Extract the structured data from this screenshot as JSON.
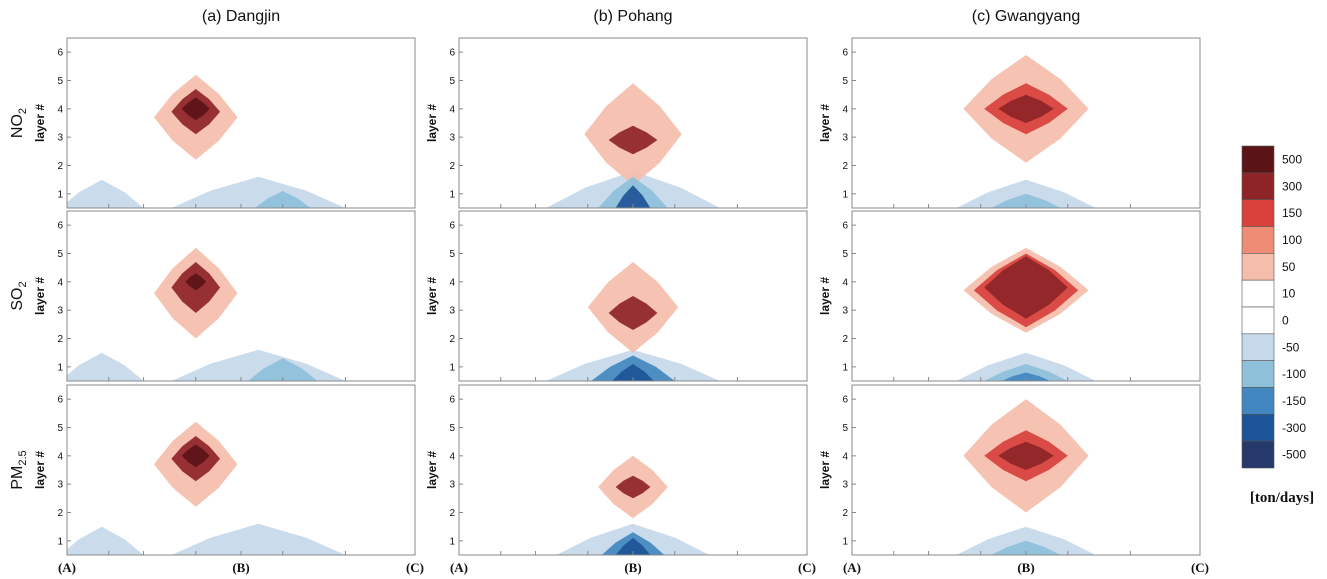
{
  "figure": {
    "columns": [
      {
        "key": "dangjin",
        "title": "(a) Dangjin"
      },
      {
        "key": "pohang",
        "title": "(b) Pohang"
      },
      {
        "key": "gwangyang",
        "title": "(c) Gwangyang"
      }
    ],
    "rows": [
      {
        "key": "no2",
        "main": "NO",
        "sub": "2"
      },
      {
        "key": "so2",
        "main": "SO",
        "sub": "2"
      },
      {
        "key": "pm25",
        "main": "PM",
        "sub": "2.5"
      }
    ],
    "y_axis_label": "layer #",
    "y_ticks": [
      "1",
      "2",
      "3",
      "4",
      "5",
      "6"
    ],
    "x_ticks": [
      "(A)",
      "(B)",
      "(C)"
    ]
  },
  "colorbar": {
    "unit": "[ton/days]",
    "tick_labels": [
      "500",
      "300",
      "150",
      "100",
      "50",
      "10",
      "0",
      "-50",
      "-100",
      "-150",
      "-300",
      "-500"
    ],
    "colors": [
      "#5a1418",
      "#8e2428",
      "#d8413c",
      "#ee8c76",
      "#f5bdab",
      "#ffffff",
      "#ffffff",
      "#c6d9ea",
      "#8ec0da",
      "#4287bf",
      "#1d5497",
      "#253a6b"
    ]
  },
  "chart_data": [
    {
      "type": "contour",
      "column": "(a) Dangjin",
      "row": "NO2",
      "ylim": [
        0.5,
        6.5
      ],
      "xlim": [
        0,
        1
      ],
      "cells": [
        {
          "x": 0.37,
          "y": 4.0,
          "level": 500,
          "rx": 0.04,
          "ry": 0.4
        },
        {
          "x": 0.37,
          "y": 3.9,
          "level": 300,
          "rx": 0.07,
          "ry": 0.8
        },
        {
          "x": 0.37,
          "y": 3.7,
          "level": 50,
          "rx": 0.12,
          "ry": 1.5
        },
        {
          "x": 0.1,
          "y": 0.5,
          "level": -50,
          "rx": 0.12,
          "ry": 1.0
        },
        {
          "x": 0.55,
          "y": 0.5,
          "level": -50,
          "rx": 0.25,
          "ry": 1.1
        },
        {
          "x": 0.62,
          "y": 0.5,
          "level": -100,
          "rx": 0.08,
          "ry": 0.6
        }
      ]
    },
    {
      "type": "contour",
      "column": "(a) Dangjin",
      "row": "SO2",
      "ylim": [
        0.5,
        6.5
      ],
      "xlim": [
        0,
        1
      ],
      "cells": [
        {
          "x": 0.37,
          "y": 4.0,
          "level": 500,
          "rx": 0.03,
          "ry": 0.3
        },
        {
          "x": 0.37,
          "y": 3.8,
          "level": 300,
          "rx": 0.07,
          "ry": 0.9
        },
        {
          "x": 0.37,
          "y": 3.6,
          "level": 50,
          "rx": 0.12,
          "ry": 1.6
        },
        {
          "x": 0.1,
          "y": 0.5,
          "level": -50,
          "rx": 0.12,
          "ry": 1.0
        },
        {
          "x": 0.55,
          "y": 0.5,
          "level": -50,
          "rx": 0.25,
          "ry": 1.1
        },
        {
          "x": 0.62,
          "y": 0.5,
          "level": -100,
          "rx": 0.1,
          "ry": 0.8
        }
      ]
    },
    {
      "type": "contour",
      "column": "(a) Dangjin",
      "row": "PM2.5",
      "ylim": [
        0.5,
        6.5
      ],
      "xlim": [
        0,
        1
      ],
      "cells": [
        {
          "x": 0.37,
          "y": 4.0,
          "level": 500,
          "rx": 0.04,
          "ry": 0.4
        },
        {
          "x": 0.37,
          "y": 3.9,
          "level": 300,
          "rx": 0.07,
          "ry": 0.8
        },
        {
          "x": 0.37,
          "y": 3.7,
          "level": 50,
          "rx": 0.12,
          "ry": 1.5
        },
        {
          "x": 0.1,
          "y": 0.5,
          "level": -50,
          "rx": 0.12,
          "ry": 1.0
        },
        {
          "x": 0.55,
          "y": 0.5,
          "level": -50,
          "rx": 0.25,
          "ry": 1.1
        }
      ]
    },
    {
      "type": "contour",
      "column": "(b) Pohang",
      "row": "NO2",
      "ylim": [
        0.5,
        6.5
      ],
      "xlim": [
        0,
        1
      ],
      "cells": [
        {
          "x": 0.5,
          "y": 2.9,
          "level": 300,
          "rx": 0.07,
          "ry": 0.5
        },
        {
          "x": 0.5,
          "y": 3.1,
          "level": 50,
          "rx": 0.14,
          "ry": 1.8
        },
        {
          "x": 0.5,
          "y": 0.5,
          "level": -50,
          "rx": 0.25,
          "ry": 1.3
        },
        {
          "x": 0.5,
          "y": 0.5,
          "level": -100,
          "rx": 0.1,
          "ry": 1.1
        },
        {
          "x": 0.5,
          "y": 0.5,
          "level": -300,
          "rx": 0.05,
          "ry": 0.8
        }
      ]
    },
    {
      "type": "contour",
      "column": "(b) Pohang",
      "row": "SO2",
      "ylim": [
        0.5,
        6.5
      ],
      "xlim": [
        0,
        1
      ],
      "cells": [
        {
          "x": 0.5,
          "y": 2.9,
          "level": 300,
          "rx": 0.07,
          "ry": 0.6
        },
        {
          "x": 0.5,
          "y": 3.1,
          "level": 50,
          "rx": 0.13,
          "ry": 1.6
        },
        {
          "x": 0.5,
          "y": 0.5,
          "level": -50,
          "rx": 0.25,
          "ry": 1.1
        },
        {
          "x": 0.5,
          "y": 0.5,
          "level": -150,
          "rx": 0.12,
          "ry": 0.9
        },
        {
          "x": 0.5,
          "y": 0.5,
          "level": -300,
          "rx": 0.06,
          "ry": 0.6
        }
      ]
    },
    {
      "type": "contour",
      "column": "(b) Pohang",
      "row": "PM2.5",
      "ylim": [
        0.5,
        6.5
      ],
      "xlim": [
        0,
        1
      ],
      "cells": [
        {
          "x": 0.5,
          "y": 2.9,
          "level": 300,
          "rx": 0.05,
          "ry": 0.4
        },
        {
          "x": 0.5,
          "y": 2.9,
          "level": 50,
          "rx": 0.1,
          "ry": 1.1
        },
        {
          "x": 0.5,
          "y": 0.5,
          "level": -50,
          "rx": 0.22,
          "ry": 1.1
        },
        {
          "x": 0.5,
          "y": 0.5,
          "level": -150,
          "rx": 0.09,
          "ry": 0.8
        },
        {
          "x": 0.5,
          "y": 0.5,
          "level": -300,
          "rx": 0.05,
          "ry": 0.6
        }
      ]
    },
    {
      "type": "contour",
      "column": "(c) Gwangyang",
      "row": "NO2",
      "ylim": [
        0.5,
        6.5
      ],
      "xlim": [
        0,
        1
      ],
      "cells": [
        {
          "x": 0.5,
          "y": 4.0,
          "level": 300,
          "rx": 0.08,
          "ry": 0.5
        },
        {
          "x": 0.5,
          "y": 4.0,
          "level": 150,
          "rx": 0.12,
          "ry": 0.9
        },
        {
          "x": 0.5,
          "y": 4.0,
          "level": 50,
          "rx": 0.18,
          "ry": 1.9
        },
        {
          "x": 0.5,
          "y": 0.5,
          "level": -50,
          "rx": 0.2,
          "ry": 1.0
        },
        {
          "x": 0.5,
          "y": 0.5,
          "level": -100,
          "rx": 0.1,
          "ry": 0.5
        }
      ]
    },
    {
      "type": "contour",
      "column": "(c) Gwangyang",
      "row": "SO2",
      "ylim": [
        0.5,
        6.5
      ],
      "xlim": [
        0,
        1
      ],
      "cells": [
        {
          "x": 0.5,
          "y": 3.8,
          "level": 300,
          "rx": 0.12,
          "ry": 1.1
        },
        {
          "x": 0.5,
          "y": 3.7,
          "level": 150,
          "rx": 0.15,
          "ry": 1.3
        },
        {
          "x": 0.5,
          "y": 3.7,
          "level": 50,
          "rx": 0.18,
          "ry": 1.5
        },
        {
          "x": 0.5,
          "y": 0.5,
          "level": -50,
          "rx": 0.2,
          "ry": 1.0
        },
        {
          "x": 0.5,
          "y": 0.5,
          "level": -100,
          "rx": 0.12,
          "ry": 0.6
        },
        {
          "x": 0.5,
          "y": 0.5,
          "level": -150,
          "rx": 0.07,
          "ry": 0.3
        }
      ]
    },
    {
      "type": "contour",
      "column": "(c) Gwangyang",
      "row": "PM2.5",
      "ylim": [
        0.5,
        6.5
      ],
      "xlim": [
        0,
        1
      ],
      "cells": [
        {
          "x": 0.5,
          "y": 4.0,
          "level": 300,
          "rx": 0.08,
          "ry": 0.5
        },
        {
          "x": 0.5,
          "y": 4.0,
          "level": 150,
          "rx": 0.12,
          "ry": 0.9
        },
        {
          "x": 0.5,
          "y": 4.0,
          "level": 50,
          "rx": 0.18,
          "ry": 2.0
        },
        {
          "x": 0.5,
          "y": 0.5,
          "level": -50,
          "rx": 0.2,
          "ry": 1.0
        },
        {
          "x": 0.5,
          "y": 0.5,
          "level": -100,
          "rx": 0.1,
          "ry": 0.5
        }
      ]
    }
  ]
}
